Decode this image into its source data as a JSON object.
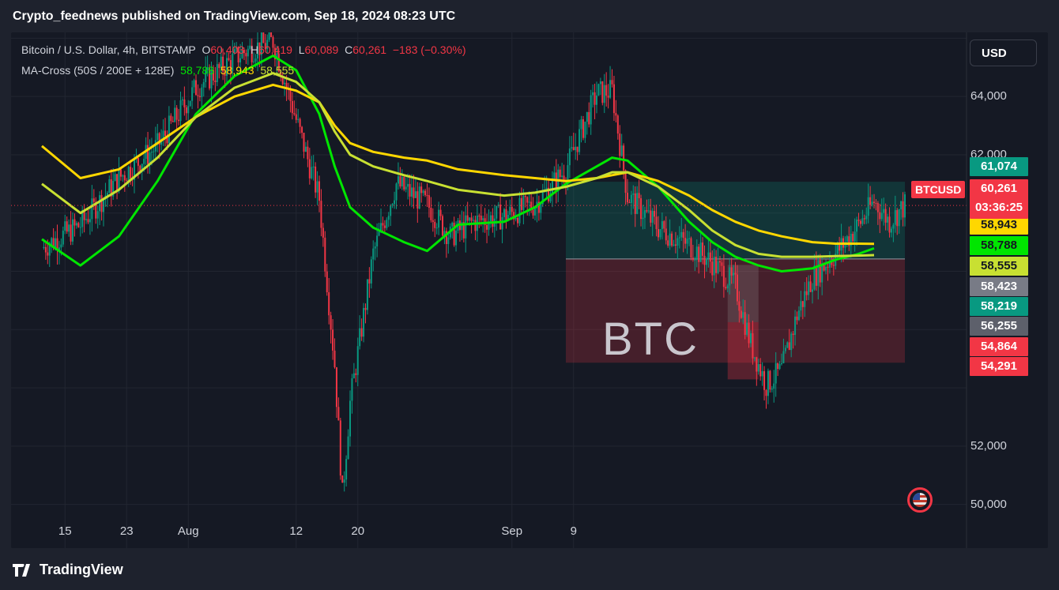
{
  "header": {
    "text": "Crypto_feednews published on TradingView.com, Sep 18, 2024 08:23 UTC"
  },
  "legend": {
    "symbol": "Bitcoin / U.S. Dollar, 4h, BITSTAMP",
    "o_label": "O",
    "o_value": "60,403",
    "h_label": "H",
    "h_value": "60,419",
    "l_label": "L",
    "l_value": "60,089",
    "c_label": "C",
    "c_value": "60,261",
    "change": "−183 (−0.30%)",
    "indicator": "MA-Cross (50S / 200E + 128E)",
    "ma_values": [
      "58,788",
      "58,943",
      "58,555"
    ]
  },
  "currency_button": "USD",
  "symbol_tag": "BTCUSD",
  "last_price": {
    "value": "60,261",
    "countdown": "03:36:25"
  },
  "watermark": "BTC",
  "footer": {
    "brand": "TradingView"
  },
  "colors": {
    "up": "#089981",
    "down": "#f23645",
    "ma_fast": "#00e600",
    "ma_slow": "#ffd700",
    "ma_mid": "#c8e032",
    "background": "#151924"
  },
  "chart_data": {
    "type": "candlestick",
    "symbol": "BTCUSD",
    "timeframe": "4h",
    "exchange": "BITSTAMP",
    "x_ticks": [
      "15",
      "23",
      "Aug",
      "12",
      "20",
      "Sep",
      "9"
    ],
    "y_ticks": [
      64000,
      62000,
      52000,
      50000
    ],
    "y_tick_labels": [
      "64,000",
      "62,000",
      "52,000",
      "50,000"
    ],
    "ylim": [
      48500,
      66200
    ],
    "close_path_approx": [
      [
        0,
        58800
      ],
      [
        5,
        59600
      ],
      [
        10,
        61200
      ],
      [
        15,
        62300
      ],
      [
        20,
        64300
      ],
      [
        26,
        65500
      ],
      [
        30,
        65900
      ],
      [
        33,
        63200
      ],
      [
        36,
        60500
      ],
      [
        38,
        54800
      ],
      [
        39,
        50300
      ],
      [
        40,
        53500
      ],
      [
        43,
        58600
      ],
      [
        46,
        61000
      ],
      [
        50,
        60300
      ],
      [
        53,
        59200
      ],
      [
        56,
        59700
      ],
      [
        60,
        59900
      ],
      [
        64,
        60300
      ],
      [
        68,
        61500
      ],
      [
        72,
        64100
      ],
      [
        74,
        64200
      ],
      [
        76,
        60600
      ],
      [
        80,
        59500
      ],
      [
        84,
        58900
      ],
      [
        87,
        58300
      ],
      [
        90,
        57500
      ],
      [
        92,
        55500
      ],
      [
        94,
        54100
      ],
      [
        96,
        54600
      ],
      [
        98,
        56500
      ],
      [
        100,
        57800
      ],
      [
        103,
        58600
      ],
      [
        106,
        59600
      ],
      [
        108,
        60400
      ],
      [
        110,
        59700
      ],
      [
        112,
        60261
      ]
    ],
    "moving_averages": [
      {
        "name": "50S",
        "color": "#00e600",
        "current": 58788,
        "points": [
          [
            0,
            59100
          ],
          [
            5,
            58200
          ],
          [
            10,
            59200
          ],
          [
            15,
            61100
          ],
          [
            20,
            63400
          ],
          [
            25,
            64700
          ],
          [
            30,
            65400
          ],
          [
            33,
            64900
          ],
          [
            36,
            63400
          ],
          [
            38,
            61600
          ],
          [
            40,
            60200
          ],
          [
            43,
            59500
          ],
          [
            47,
            59000
          ],
          [
            50,
            58700
          ],
          [
            54,
            59600
          ],
          [
            60,
            59700
          ],
          [
            64,
            60200
          ],
          [
            68,
            61000
          ],
          [
            72,
            61600
          ],
          [
            74,
            61900
          ],
          [
            76,
            61800
          ],
          [
            80,
            60900
          ],
          [
            84,
            59700
          ],
          [
            87,
            59000
          ],
          [
            90,
            58500
          ],
          [
            93,
            58200
          ],
          [
            96,
            58000
          ],
          [
            100,
            58100
          ],
          [
            103,
            58400
          ],
          [
            106,
            58600
          ],
          [
            108,
            58788
          ]
        ]
      },
      {
        "name": "200E",
        "color": "#ffd700",
        "current": 58943,
        "points": [
          [
            0,
            62300
          ],
          [
            5,
            61200
          ],
          [
            10,
            61500
          ],
          [
            15,
            62400
          ],
          [
            20,
            63300
          ],
          [
            25,
            64000
          ],
          [
            30,
            64400
          ],
          [
            33,
            64200
          ],
          [
            36,
            63800
          ],
          [
            38,
            63000
          ],
          [
            40,
            62400
          ],
          [
            43,
            62100
          ],
          [
            47,
            61900
          ],
          [
            50,
            61800
          ],
          [
            54,
            61500
          ],
          [
            60,
            61300
          ],
          [
            64,
            61200
          ],
          [
            68,
            61100
          ],
          [
            72,
            61200
          ],
          [
            74,
            61300
          ],
          [
            76,
            61400
          ],
          [
            80,
            61100
          ],
          [
            84,
            60600
          ],
          [
            87,
            60100
          ],
          [
            90,
            59700
          ],
          [
            93,
            59400
          ],
          [
            96,
            59200
          ],
          [
            100,
            59000
          ],
          [
            103,
            58950
          ],
          [
            106,
            58950
          ],
          [
            108,
            58943
          ]
        ]
      },
      {
        "name": "128E",
        "color": "#c8e032",
        "current": 58555,
        "points": [
          [
            0,
            61000
          ],
          [
            5,
            60000
          ],
          [
            10,
            60800
          ],
          [
            15,
            61900
          ],
          [
            20,
            63300
          ],
          [
            25,
            64300
          ],
          [
            30,
            64800
          ],
          [
            33,
            64500
          ],
          [
            36,
            63800
          ],
          [
            38,
            62800
          ],
          [
            40,
            62000
          ],
          [
            43,
            61600
          ],
          [
            47,
            61300
          ],
          [
            50,
            61100
          ],
          [
            54,
            60800
          ],
          [
            60,
            60600
          ],
          [
            64,
            60700
          ],
          [
            68,
            60900
          ],
          [
            72,
            61200
          ],
          [
            74,
            61400
          ],
          [
            76,
            61400
          ],
          [
            80,
            60900
          ],
          [
            84,
            60100
          ],
          [
            87,
            59400
          ],
          [
            90,
            58900
          ],
          [
            93,
            58600
          ],
          [
            96,
            58500
          ],
          [
            100,
            58500
          ],
          [
            103,
            58520
          ],
          [
            106,
            58540
          ],
          [
            108,
            58555
          ]
        ]
      }
    ],
    "zones": [
      {
        "type": "long_position_target",
        "color": "#089981",
        "from_x": 68,
        "to_x": 112,
        "from_y": 58423,
        "to_y": 61074
      },
      {
        "type": "long_position_stop",
        "color": "#f23645",
        "from_x": 68,
        "to_x": 112,
        "from_y": 54864,
        "to_y": 58423
      },
      {
        "type": "box",
        "color": "#f23645",
        "from_x": 89,
        "to_x": 93,
        "from_y": 54291,
        "to_y": 56255
      },
      {
        "type": "box",
        "color": "#808080",
        "from_x": 89,
        "to_x": 93,
        "from_y": 56255,
        "to_y": 58219
      }
    ],
    "price_labels": [
      {
        "value": 61074,
        "text": "61,074",
        "color": "#089981"
      },
      {
        "value": 58943,
        "text": "58,943",
        "color": "#ffd700"
      },
      {
        "value": 58788,
        "text": "58,788",
        "color": "#00e600"
      },
      {
        "value": 58555,
        "text": "58,555",
        "color": "#c8e032"
      },
      {
        "value": 58423,
        "text": "58,423",
        "color": "#787b86"
      },
      {
        "value": 58219,
        "text": "58,219",
        "color": "#089981"
      },
      {
        "value": 56255,
        "text": "56,255",
        "color": "#5d606b"
      },
      {
        "value": 54864,
        "text": "54,864",
        "color": "#f23645"
      },
      {
        "value": 54291,
        "text": "54,291",
        "color": "#f23645"
      }
    ]
  }
}
